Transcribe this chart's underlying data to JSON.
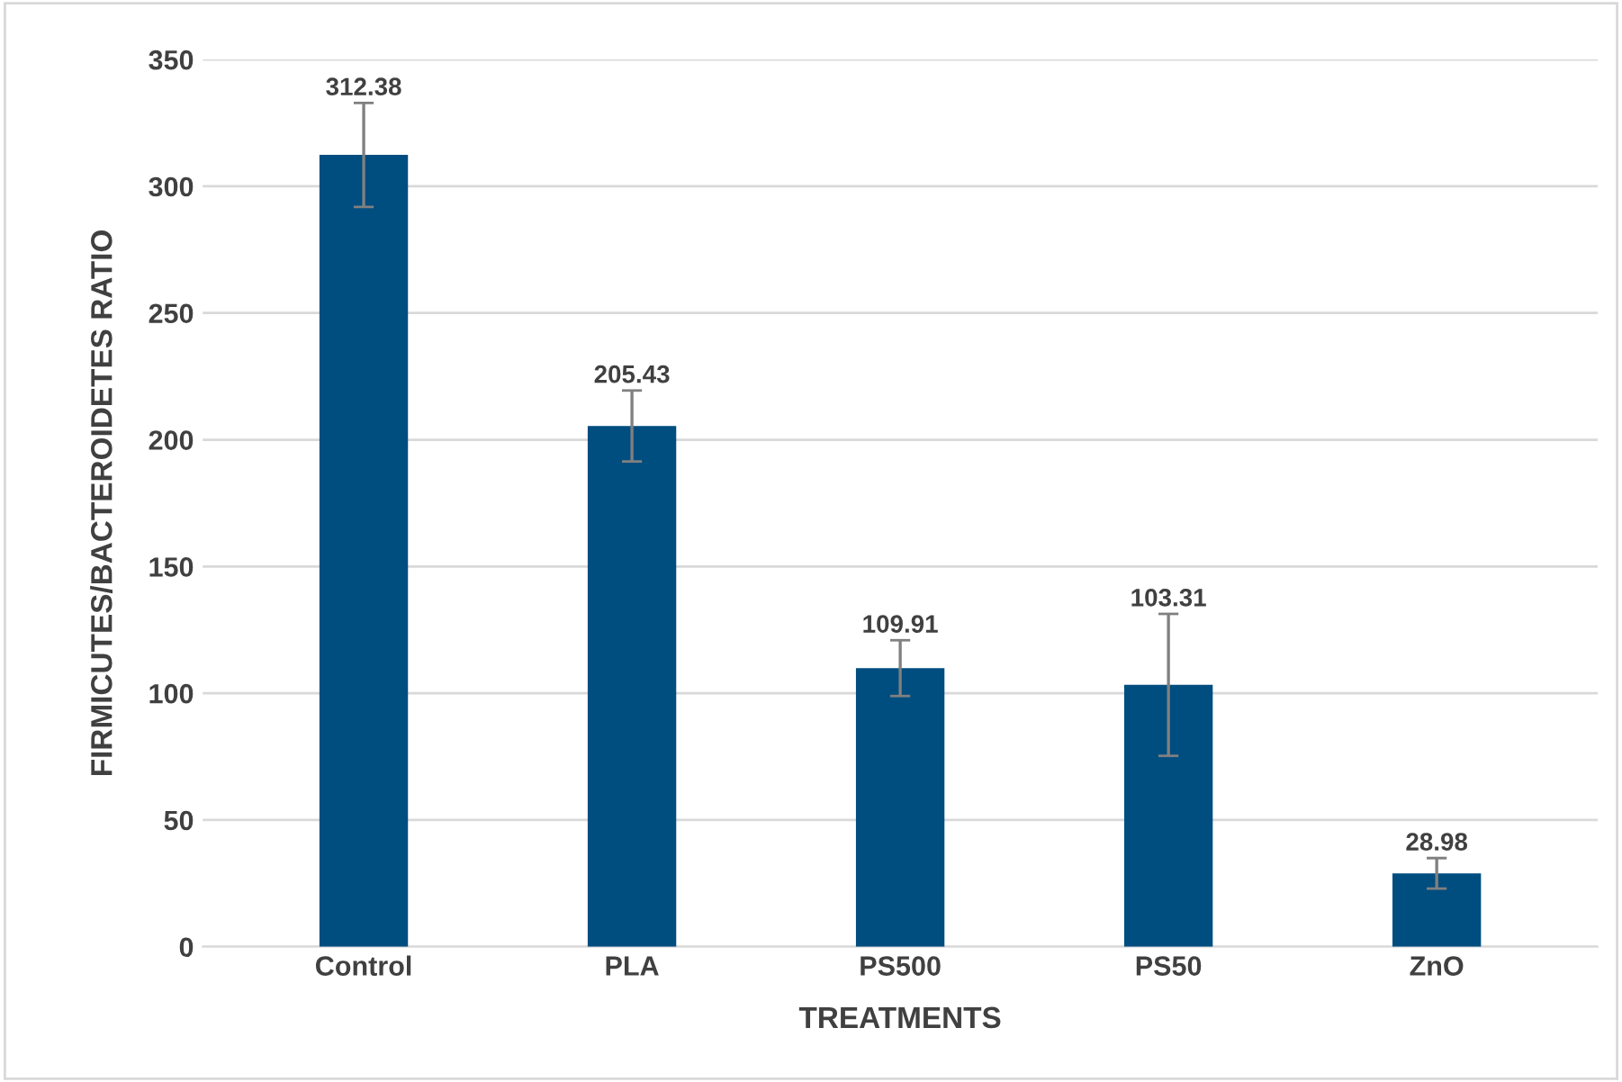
{
  "chart_data": {
    "type": "bar",
    "xlabel": "TREATMENTS",
    "ylabel": "FIRMICUTES/BACTEROIDETES RATIO",
    "categories": [
      "Control",
      "PLA",
      "PS500",
      "PS50",
      "ZnO"
    ],
    "values": [
      312.38,
      205.43,
      109.91,
      103.31,
      28.98
    ],
    "errors": [
      20.5,
      14,
      11,
      28,
      6
    ],
    "color": "#004d7f",
    "data_labels": true,
    "grid": "y",
    "ylim": [
      0,
      350
    ],
    "yticks": [
      0,
      50,
      100,
      150,
      200,
      250,
      300,
      350
    ]
  }
}
